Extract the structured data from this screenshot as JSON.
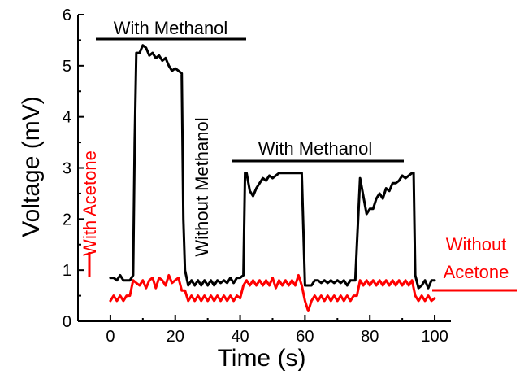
{
  "chart_data": {
    "type": "line",
    "xlabel": "Time (s)",
    "ylabel": "Voltage (mV)",
    "xlim": [
      -10,
      105
    ],
    "ylim": [
      0,
      6
    ],
    "xticks": [
      0,
      20,
      40,
      60,
      80,
      100
    ],
    "yticks": [
      0,
      1,
      2,
      3,
      4,
      5,
      6
    ],
    "grid": false,
    "colors": {
      "methanol_series": "#000000",
      "acetone_series": "#ff0000",
      "axes": "#000000"
    },
    "series": [
      {
        "key": "methanol",
        "x": [
          0,
          1,
          2,
          3,
          4,
          5,
          6,
          7,
          7.5,
          8,
          9,
          10,
          11,
          12,
          13,
          14,
          15,
          16,
          17,
          18,
          19,
          20,
          21,
          22,
          22.5,
          23,
          24,
          25,
          26,
          27,
          28,
          29,
          30,
          31,
          32,
          33,
          34,
          35,
          36,
          37,
          38,
          39,
          40,
          41,
          41.5,
          42,
          43,
          44,
          45,
          46,
          47,
          48,
          49,
          50,
          51,
          52,
          53,
          54,
          55,
          56,
          57,
          58,
          59,
          60,
          61,
          62,
          63,
          64,
          65,
          66,
          67,
          68,
          69,
          70,
          71,
          72,
          73,
          74,
          75,
          75.5,
          76,
          77,
          78,
          79,
          80,
          81,
          82,
          83,
          84,
          85,
          86,
          87,
          88,
          89,
          90,
          91,
          92,
          93,
          93.5,
          94,
          95,
          96,
          97,
          98,
          99,
          100
        ],
        "y": [
          0.85,
          0.85,
          0.8,
          0.9,
          0.8,
          0.8,
          0.8,
          0.9,
          3.5,
          5.25,
          5.25,
          5.4,
          5.35,
          5.2,
          5.25,
          5.15,
          5.2,
          5.1,
          5.15,
          5.0,
          4.9,
          4.95,
          4.9,
          4.85,
          2.0,
          1.0,
          0.7,
          0.8,
          0.7,
          0.8,
          0.7,
          0.8,
          0.7,
          0.8,
          0.7,
          0.8,
          0.75,
          0.8,
          0.75,
          0.85,
          0.75,
          0.85,
          0.85,
          0.9,
          2.9,
          2.9,
          2.55,
          2.45,
          2.6,
          2.7,
          2.8,
          2.75,
          2.85,
          2.8,
          2.85,
          2.9,
          2.9,
          2.9,
          2.9,
          2.9,
          2.9,
          2.9,
          2.9,
          0.7,
          0.7,
          0.7,
          0.8,
          0.8,
          0.75,
          0.8,
          0.75,
          0.8,
          0.75,
          0.8,
          0.75,
          0.8,
          0.7,
          0.8,
          0.8,
          0.8,
          1.5,
          2.8,
          2.45,
          2.1,
          2.2,
          2.2,
          2.4,
          2.5,
          2.4,
          2.6,
          2.55,
          2.7,
          2.7,
          2.75,
          2.85,
          2.8,
          2.85,
          2.9,
          2.9,
          0.9,
          0.65,
          0.7,
          0.8,
          0.65,
          0.8,
          0.8
        ]
      },
      {
        "key": "acetone",
        "x": [
          0,
          1,
          2,
          3,
          4,
          5,
          6,
          7,
          8,
          9,
          10,
          11,
          12,
          13,
          14,
          15,
          16,
          17,
          18,
          19,
          20,
          21,
          22,
          23,
          24,
          25,
          26,
          27,
          28,
          29,
          30,
          31,
          32,
          33,
          34,
          35,
          36,
          37,
          38,
          39,
          40,
          41,
          42,
          43,
          44,
          45,
          46,
          47,
          48,
          49,
          50,
          51,
          52,
          53,
          54,
          55,
          56,
          57,
          58,
          59,
          60,
          61,
          62,
          63,
          64,
          65,
          66,
          67,
          68,
          69,
          70,
          71,
          72,
          73,
          74,
          75,
          76,
          77,
          78,
          79,
          80,
          81,
          82,
          83,
          84,
          85,
          86,
          87,
          88,
          89,
          90,
          91,
          92,
          93,
          94,
          95,
          96,
          97,
          98,
          99,
          100
        ],
        "y": [
          0.4,
          0.5,
          0.4,
          0.5,
          0.4,
          0.5,
          0.5,
          0.8,
          0.75,
          0.7,
          0.8,
          0.65,
          0.8,
          0.85,
          0.65,
          0.85,
          0.8,
          0.7,
          0.9,
          0.75,
          0.8,
          0.85,
          0.6,
          0.6,
          0.4,
          0.5,
          0.4,
          0.5,
          0.4,
          0.5,
          0.4,
          0.5,
          0.4,
          0.5,
          0.4,
          0.5,
          0.4,
          0.5,
          0.4,
          0.5,
          0.45,
          0.7,
          0.8,
          0.7,
          0.8,
          0.7,
          0.8,
          0.7,
          0.8,
          0.7,
          0.85,
          0.65,
          0.8,
          0.7,
          0.8,
          0.7,
          0.8,
          0.7,
          0.9,
          0.7,
          0.4,
          0.2,
          0.4,
          0.5,
          0.4,
          0.5,
          0.4,
          0.5,
          0.4,
          0.5,
          0.4,
          0.5,
          0.4,
          0.5,
          0.4,
          0.5,
          0.5,
          0.8,
          0.7,
          0.8,
          0.7,
          0.8,
          0.7,
          0.8,
          0.7,
          0.8,
          0.7,
          0.8,
          0.7,
          0.8,
          0.7,
          0.8,
          0.7,
          0.8,
          0.5,
          0.4,
          0.5,
          0.4,
          0.5,
          0.4,
          0.45
        ]
      }
    ],
    "annotations": [
      {
        "key": "with_methanol_1",
        "text": "With Methanol",
        "color": "#000000"
      },
      {
        "key": "with_methanol_2",
        "text": "With Methanol",
        "color": "#000000"
      },
      {
        "key": "without_methanol",
        "text": "Without Methanol",
        "color": "#000000"
      },
      {
        "key": "with_acetone",
        "text": "With Acetone",
        "color": "#ff0000"
      },
      {
        "key": "without_acetone_1",
        "text": "Without",
        "color": "#ff0000"
      },
      {
        "key": "without_acetone_2",
        "text": "Acetone",
        "color": "#ff0000"
      }
    ]
  }
}
